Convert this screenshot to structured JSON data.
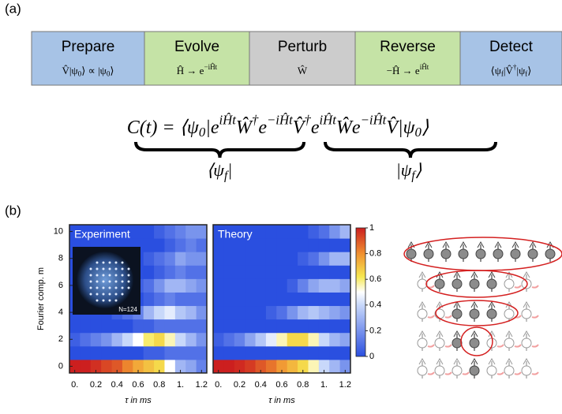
{
  "panel_a": {
    "label": "(a)",
    "steps": [
      {
        "title": "Prepare",
        "formula": [
          {
            "t": "V̂|ψ"
          },
          {
            "sub": "0"
          },
          {
            "t": "⟩ ∝ |ψ"
          },
          {
            "sub": "0"
          },
          {
            "t": "⟩"
          }
        ]
      },
      {
        "title": "Evolve",
        "formula": [
          {
            "t": "Ĥ → e"
          },
          {
            "sup": "−iĤt"
          }
        ]
      },
      {
        "title": "Perturb",
        "formula": [
          {
            "t": "Ŵ"
          }
        ]
      },
      {
        "title": "Reverse",
        "formula": [
          {
            "t": "−Ĥ → e"
          },
          {
            "sup": "iĤt"
          }
        ]
      },
      {
        "title": "Detect",
        "formula": [
          {
            "t": "⟨ψ"
          },
          {
            "sub": "f"
          },
          {
            "t": "|V̂"
          },
          {
            "sup": "†"
          },
          {
            "t": "|ψ"
          },
          {
            "sub": "f"
          },
          {
            "t": "⟩"
          }
        ]
      }
    ],
    "formula": [
      {
        "t": "C(t) = ⟨ψ"
      },
      {
        "sub": "0"
      },
      {
        "t": "|e"
      },
      {
        "sup": "iĤt"
      },
      {
        "t": "Ŵ"
      },
      {
        "sup": "†"
      },
      {
        "t": "e"
      },
      {
        "sup": "−iĤt"
      },
      {
        "t": "V̂"
      },
      {
        "sup": "†"
      },
      {
        "t": "e"
      },
      {
        "sup": "iĤt"
      },
      {
        "t": "Ŵe"
      },
      {
        "sup": "−iĤt"
      },
      {
        "t": "V̂|ψ"
      },
      {
        "sub": "0"
      },
      {
        "t": "⟩"
      }
    ],
    "brace_left": [
      {
        "t": "⟨ψ"
      },
      {
        "sub": "f"
      },
      {
        "t": "|"
      }
    ],
    "brace_right": [
      {
        "t": "|ψ"
      },
      {
        "sub": "f"
      },
      {
        "t": "⟩"
      }
    ]
  },
  "panel_b": {
    "label": "(b)"
  },
  "colorbar": {
    "lim": [
      0,
      1
    ],
    "ticks": [
      0,
      0.2,
      0.4,
      0.6,
      0.8,
      1
    ]
  },
  "chart_data": [
    {
      "type": "heatmap",
      "title": "Experiment",
      "annotation": "N=124",
      "xlabel": "τ in ms",
      "ylabel": "Fourier comp. m",
      "x": [
        0,
        0.1,
        0.2,
        0.3,
        0.4,
        0.5,
        0.6,
        0.7,
        0.8,
        0.9,
        1,
        1.1,
        1.2
      ],
      "y": [
        0,
        1,
        2,
        3,
        4,
        5,
        6,
        7,
        8,
        9,
        10
      ],
      "z": [
        [
          1,
          1,
          0.97,
          0.93,
          0.9,
          0.82,
          0.75,
          0.7,
          0.65,
          0.5,
          0.3,
          0.25,
          0.15
        ],
        [
          0,
          0,
          0,
          0,
          0,
          0,
          0,
          0.05,
          0.05,
          0.1,
          0.1,
          0.1,
          0.1
        ],
        [
          0.05,
          0.1,
          0.15,
          0.2,
          0.3,
          0.4,
          0.5,
          0.6,
          0.65,
          0.55,
          0.4,
          0.3,
          0.2
        ],
        [
          0,
          0,
          0,
          0,
          0,
          0,
          0.05,
          0.05,
          0.1,
          0.1,
          0.1,
          0.1,
          0.1
        ],
        [
          0,
          0,
          0,
          0,
          0.05,
          0.1,
          0.15,
          0.3,
          0.4,
          0.45,
          0.35,
          0.3,
          0.2
        ],
        [
          0,
          0,
          0,
          0,
          0,
          0,
          0,
          0.05,
          0.1,
          0.15,
          0.1,
          0.1,
          0.1
        ],
        [
          0,
          0,
          0,
          0,
          0,
          0,
          0.05,
          0.1,
          0.2,
          0.3,
          0.3,
          0.25,
          0.2
        ],
        [
          0,
          0,
          0,
          0,
          0,
          0,
          0,
          0,
          0.05,
          0.1,
          0.15,
          0.1,
          0.1
        ],
        [
          0,
          0,
          0,
          0,
          0,
          0,
          0,
          0.05,
          0.1,
          0.15,
          0.25,
          0.2,
          0.2
        ],
        [
          0,
          0,
          0,
          0,
          0,
          0,
          0,
          0,
          0,
          0.05,
          0.1,
          0.15,
          0.1
        ],
        [
          0,
          0,
          0,
          0,
          0,
          0,
          0,
          0,
          0.05,
          0.1,
          0.15,
          0.2,
          0.2
        ]
      ],
      "xlim": [
        -0.05,
        1.25
      ],
      "ylim": [
        -0.5,
        10.5
      ],
      "xticks": [
        {
          "value": 0,
          "label": "0."
        },
        0.2,
        0.4,
        0.6,
        0.8,
        {
          "value": 1,
          "label": "1."
        },
        1.2
      ],
      "yticks": [
        0,
        2,
        4,
        6,
        8,
        10
      ]
    },
    {
      "type": "heatmap",
      "title": "Theory",
      "xlabel": "τ in ms",
      "x": [
        0,
        0.1,
        0.2,
        0.3,
        0.4,
        0.5,
        0.6,
        0.7,
        0.8,
        0.9,
        1,
        1.1,
        1.2
      ],
      "y": [
        0,
        1,
        2,
        3,
        4,
        5,
        6,
        7,
        8,
        9,
        10
      ],
      "z": [
        [
          1,
          1,
          0.98,
          0.95,
          0.9,
          0.85,
          0.78,
          0.72,
          0.65,
          0.55,
          0.4,
          0.3,
          0.2
        ],
        [
          0,
          0,
          0,
          0,
          0,
          0,
          0,
          0,
          0,
          0,
          0,
          0,
          0
        ],
        [
          0.05,
          0.1,
          0.15,
          0.25,
          0.35,
          0.45,
          0.55,
          0.65,
          0.65,
          0.55,
          0.4,
          0.3,
          0.25
        ],
        [
          0,
          0,
          0,
          0,
          0,
          0,
          0,
          0,
          0,
          0,
          0,
          0,
          0
        ],
        [
          0,
          0,
          0,
          0,
          0,
          0.05,
          0.1,
          0.2,
          0.3,
          0.35,
          0.3,
          0.25,
          0.2
        ],
        [
          0,
          0,
          0,
          0,
          0,
          0,
          0,
          0,
          0,
          0,
          0,
          0,
          0
        ],
        [
          0,
          0,
          0,
          0,
          0,
          0,
          0,
          0.05,
          0.15,
          0.25,
          0.3,
          0.3,
          0.25
        ],
        [
          0,
          0,
          0,
          0,
          0,
          0,
          0,
          0,
          0,
          0,
          0,
          0,
          0
        ],
        [
          0,
          0,
          0,
          0,
          0,
          0,
          0,
          0,
          0.05,
          0.1,
          0.2,
          0.3,
          0.3
        ],
        [
          0,
          0,
          0,
          0,
          0,
          0,
          0,
          0,
          0,
          0,
          0,
          0,
          0
        ],
        [
          0,
          0,
          0,
          0,
          0,
          0,
          0,
          0,
          0,
          0.05,
          0.1,
          0.2,
          0.3
        ]
      ],
      "xlim": [
        -0.05,
        1.25
      ],
      "ylim": [
        -0.5,
        10.5
      ],
      "xticks": [
        {
          "value": 0,
          "label": "0."
        },
        0.2,
        0.4,
        0.6,
        0.8,
        {
          "value": 1,
          "label": "1."
        },
        1.2
      ]
    }
  ]
}
